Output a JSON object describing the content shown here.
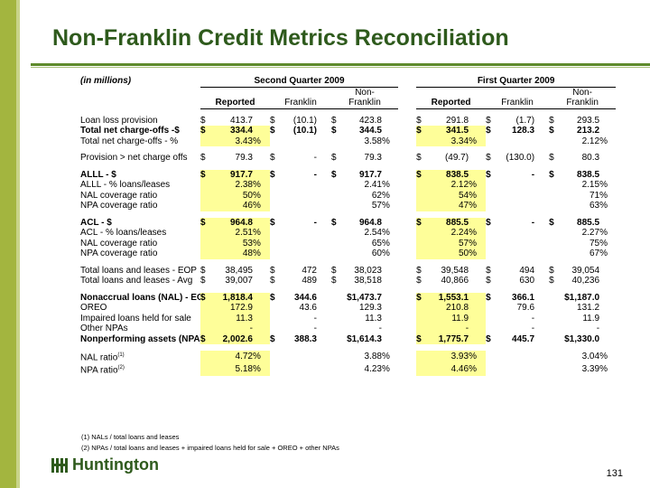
{
  "title": "Non-Franklin Credit Metrics Reconciliation",
  "units_label": "(in millions)",
  "periods": [
    "Second Quarter 2009",
    "First Quarter 2009"
  ],
  "col_top": {
    "nonfranklin": "Non-"
  },
  "columns": {
    "reported": "Reported",
    "franklin": "Franklin",
    "nonfranklin": "Franklin"
  },
  "rows": [
    {
      "label": "Loan loss provision",
      "bold": false,
      "hl": [
        false,
        false
      ],
      "cells": [
        [
          "$",
          "413.7",
          ""
        ],
        [
          "$",
          "(10.1)",
          ""
        ],
        [
          "$",
          "423.8",
          ""
        ],
        [
          "$",
          "291.8",
          ""
        ],
        [
          "$",
          "(1.7)",
          ""
        ],
        [
          "$",
          "293.5",
          ""
        ]
      ]
    },
    {
      "label": "Total net charge-offs -$",
      "bold": true,
      "hl": [
        true,
        true
      ],
      "cells": [
        [
          "$",
          "334.4",
          ""
        ],
        [
          "$",
          "(10.1)",
          ""
        ],
        [
          "$",
          "344.5",
          ""
        ],
        [
          "$",
          "341.5",
          ""
        ],
        [
          "$",
          "128.3",
          ""
        ],
        [
          "$",
          "213.2",
          ""
        ]
      ]
    },
    {
      "label": "Total net charge-offs - %",
      "bold": false,
      "hl": [
        true,
        true
      ],
      "cells": [
        [
          "",
          "3.43",
          "%"
        ],
        [
          "",
          "",
          ""
        ],
        [
          "",
          "3.58",
          "%"
        ],
        [
          "",
          "3.34",
          "%"
        ],
        [
          "",
          "",
          ""
        ],
        [
          "",
          "2.12",
          "%"
        ]
      ]
    },
    {
      "spacer": true
    },
    {
      "label": "Provision > net charge offs",
      "bold": false,
      "hl": [
        false,
        false
      ],
      "cells": [
        [
          "$",
          "79.3",
          ""
        ],
        [
          "$",
          "-",
          ""
        ],
        [
          "$",
          "79.3",
          ""
        ],
        [
          "$",
          "(49.7)",
          ""
        ],
        [
          "$",
          "(130.0)",
          ""
        ],
        [
          "$",
          "80.3",
          ""
        ]
      ]
    },
    {
      "spacer": true
    },
    {
      "label": "ALLL - $",
      "bold": true,
      "hl": [
        true,
        true
      ],
      "cells": [
        [
          "$",
          "917.7",
          ""
        ],
        [
          "$",
          "-",
          ""
        ],
        [
          "$",
          "917.7",
          ""
        ],
        [
          "$",
          "838.5",
          ""
        ],
        [
          "$",
          "-",
          ""
        ],
        [
          "$",
          "838.5",
          ""
        ]
      ]
    },
    {
      "label": "ALLL - % loans/leases",
      "bold": false,
      "hl": [
        true,
        true
      ],
      "cells": [
        [
          "",
          "2.38",
          "%"
        ],
        [
          "",
          "",
          ""
        ],
        [
          "",
          "2.41",
          "%"
        ],
        [
          "",
          "2.12",
          "%"
        ],
        [
          "",
          "",
          ""
        ],
        [
          "",
          "2.15",
          "%"
        ]
      ]
    },
    {
      "label": "NAL coverage ratio",
      "bold": false,
      "hl": [
        true,
        true
      ],
      "cells": [
        [
          "",
          "50",
          "%"
        ],
        [
          "",
          "",
          ""
        ],
        [
          "",
          "62",
          "%"
        ],
        [
          "",
          "54",
          "%"
        ],
        [
          "",
          "",
          ""
        ],
        [
          "",
          "71",
          "%"
        ]
      ]
    },
    {
      "label": "NPA coverage ratio",
      "bold": false,
      "hl": [
        true,
        true
      ],
      "cells": [
        [
          "",
          "46",
          "%"
        ],
        [
          "",
          "",
          ""
        ],
        [
          "",
          "57",
          "%"
        ],
        [
          "",
          "47",
          "%"
        ],
        [
          "",
          "",
          ""
        ],
        [
          "",
          "63",
          "%"
        ]
      ]
    },
    {
      "spacer": true
    },
    {
      "label": "ACL - $",
      "bold": true,
      "hl": [
        true,
        true
      ],
      "cells": [
        [
          "$",
          "964.8",
          ""
        ],
        [
          "$",
          "-",
          ""
        ],
        [
          "$",
          "964.8",
          ""
        ],
        [
          "$",
          "885.5",
          ""
        ],
        [
          "$",
          "-",
          ""
        ],
        [
          "$",
          "885.5",
          ""
        ]
      ]
    },
    {
      "label": "ACL - % loans/leases",
      "bold": false,
      "hl": [
        true,
        true
      ],
      "cells": [
        [
          "",
          "2.51",
          "%"
        ],
        [
          "",
          "",
          ""
        ],
        [
          "",
          "2.54",
          "%"
        ],
        [
          "",
          "2.24",
          "%"
        ],
        [
          "",
          "",
          ""
        ],
        [
          "",
          "2.27",
          "%"
        ]
      ]
    },
    {
      "label": "NAL coverage ratio",
      "bold": false,
      "hl": [
        true,
        true
      ],
      "cells": [
        [
          "",
          "53",
          "%"
        ],
        [
          "",
          "",
          ""
        ],
        [
          "",
          "65",
          "%"
        ],
        [
          "",
          "57",
          "%"
        ],
        [
          "",
          "",
          ""
        ],
        [
          "",
          "75",
          "%"
        ]
      ]
    },
    {
      "label": "NPA coverage ratio",
      "bold": false,
      "hl": [
        true,
        true
      ],
      "cells": [
        [
          "",
          "48",
          "%"
        ],
        [
          "",
          "",
          ""
        ],
        [
          "",
          "60",
          "%"
        ],
        [
          "",
          "50",
          "%"
        ],
        [
          "",
          "",
          ""
        ],
        [
          "",
          "67",
          "%"
        ]
      ]
    },
    {
      "spacer": true
    },
    {
      "label": "Total loans and leases - EOP",
      "bold": false,
      "hl": [
        false,
        false
      ],
      "cells": [
        [
          "$",
          "38,495",
          ""
        ],
        [
          "$",
          "472",
          ""
        ],
        [
          "$",
          "38,023",
          ""
        ],
        [
          "$",
          "39,548",
          ""
        ],
        [
          "$",
          "494",
          ""
        ],
        [
          "$",
          "39,054",
          ""
        ]
      ]
    },
    {
      "label": "Total loans and leases - Avg",
      "bold": false,
      "hl": [
        false,
        false
      ],
      "cells": [
        [
          "$",
          "39,007",
          ""
        ],
        [
          "$",
          "489",
          ""
        ],
        [
          "$",
          "38,518",
          ""
        ],
        [
          "$",
          "40,866",
          ""
        ],
        [
          "$",
          "630",
          ""
        ],
        [
          "$",
          "40,236",
          ""
        ]
      ]
    },
    {
      "spacer": true
    },
    {
      "label": "Nonaccrual loans (NAL) - EOP",
      "bold": true,
      "hl": [
        true,
        true
      ],
      "cells": [
        [
          "$",
          "1,818.4",
          ""
        ],
        [
          "$",
          "344.6",
          ""
        ],
        [
          "",
          "$1,473.7",
          ""
        ],
        [
          "$",
          "1,553.1",
          ""
        ],
        [
          "$",
          "366.1",
          ""
        ],
        [
          "",
          "$1,187.0",
          ""
        ]
      ]
    },
    {
      "label": "OREO",
      "bold": false,
      "hl": [
        true,
        true
      ],
      "cells": [
        [
          "",
          "172.9",
          ""
        ],
        [
          "",
          "43.6",
          ""
        ],
        [
          "",
          "129.3",
          ""
        ],
        [
          "",
          "210.8",
          ""
        ],
        [
          "",
          "79.6",
          ""
        ],
        [
          "",
          "131.2",
          ""
        ]
      ]
    },
    {
      "label": "Impaired loans held for sale",
      "bold": false,
      "hl": [
        true,
        true
      ],
      "cells": [
        [
          "",
          "11.3",
          ""
        ],
        [
          "",
          "-",
          ""
        ],
        [
          "",
          "11.3",
          ""
        ],
        [
          "",
          "11.9",
          ""
        ],
        [
          "",
          "-",
          ""
        ],
        [
          "",
          "11.9",
          ""
        ]
      ]
    },
    {
      "label": "Other NPAs",
      "bold": false,
      "hl": [
        true,
        true
      ],
      "cells": [
        [
          "",
          "-",
          ""
        ],
        [
          "",
          "-",
          ""
        ],
        [
          "",
          "-",
          ""
        ],
        [
          "",
          "-",
          ""
        ],
        [
          "",
          "-",
          ""
        ],
        [
          "",
          "-",
          ""
        ]
      ]
    },
    {
      "label": "Nonperforming assets (NPA)",
      "bold": true,
      "hl": [
        true,
        true
      ],
      "cells": [
        [
          "$",
          "2,002.6",
          ""
        ],
        [
          "$",
          "388.3",
          ""
        ],
        [
          "",
          "$1,614.3",
          ""
        ],
        [
          "$",
          "1,775.7",
          ""
        ],
        [
          "$",
          "445.7",
          ""
        ],
        [
          "",
          "$1,330.0",
          ""
        ]
      ]
    },
    {
      "spacer": true
    },
    {
      "label": "NAL ratio",
      "sup": "(1)",
      "bold": false,
      "hl": [
        true,
        true
      ],
      "cells": [
        [
          "",
          "4.72",
          "%"
        ],
        [
          "",
          "",
          ""
        ],
        [
          "",
          "3.88",
          "%"
        ],
        [
          "",
          "3.93",
          "%"
        ],
        [
          "",
          "",
          ""
        ],
        [
          "",
          "3.04",
          "%"
        ]
      ]
    },
    {
      "label": "NPA ratio",
      "sup": "(2)",
      "bold": false,
      "hl": [
        true,
        true
      ],
      "cells": [
        [
          "",
          "5.18",
          "%"
        ],
        [
          "",
          "",
          ""
        ],
        [
          "",
          "4.23",
          "%"
        ],
        [
          "",
          "4.46",
          "%"
        ],
        [
          "",
          "",
          ""
        ],
        [
          "",
          "3.39",
          "%"
        ]
      ]
    }
  ],
  "footnotes": [
    "(1) NALs / total loans and leases",
    "(2) NPAs / total loans and leases + impaired loans held for sale + OREO + other NPAs"
  ],
  "logo_text": "Huntington",
  "page_number": "131",
  "colors": {
    "accent": "#2e5a1c",
    "highlight": "#fefe99",
    "stripe": "#a3b53f"
  }
}
